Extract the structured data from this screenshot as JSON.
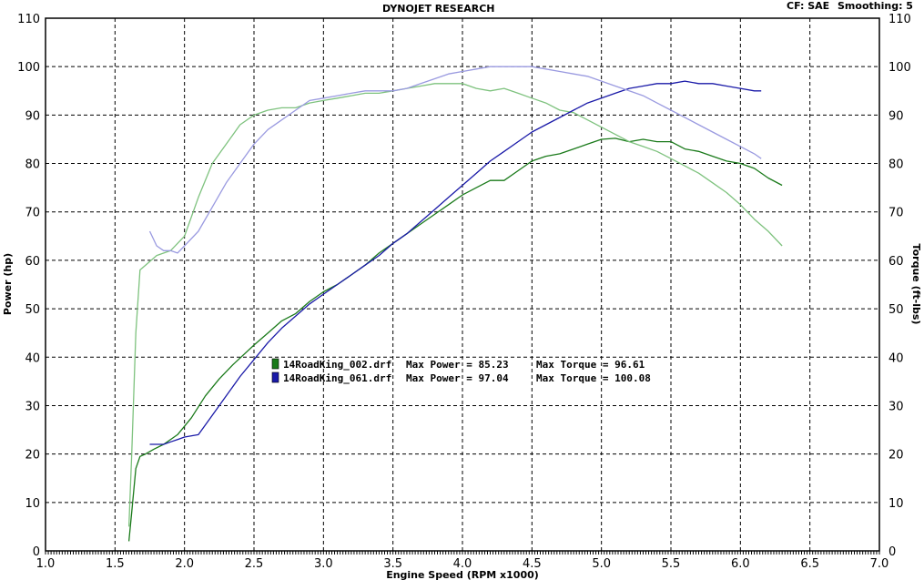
{
  "header": {
    "title": "DYNOJET RESEARCH",
    "cf_label": "CF: SAE",
    "smoothing_label": "Smoothing: 5"
  },
  "chart_data": {
    "type": "line",
    "title": "DYNOJET RESEARCH",
    "xlabel": "Engine Speed (RPM x1000)",
    "ylabel_left": "Power (hp)",
    "ylabel_right": "Torque (ft-lbs)",
    "xlim": [
      1.0,
      7.0
    ],
    "ylim": [
      0,
      110
    ],
    "x_ticks": [
      "1.0",
      "1.5",
      "2.0",
      "2.5",
      "3.0",
      "3.5",
      "4.0",
      "4.5",
      "5.0",
      "5.5",
      "6.0",
      "6.5",
      "7.0"
    ],
    "y_ticks": [
      "0",
      "10",
      "20",
      "30",
      "40",
      "50",
      "60",
      "70",
      "80",
      "90",
      "100",
      "110"
    ],
    "grid": true,
    "legend": [
      {
        "file": "14RoadKing_002.drf",
        "power_text": "Max Power = 85.23",
        "torque_text": "Max Torque = 96.61",
        "color": "#1a7a1a"
      },
      {
        "file": "14RoadKing_061.drf",
        "power_text": "Max Power = 97.04",
        "torque_text": "Max Torque = 100.08",
        "color": "#1a1aa8"
      }
    ],
    "series": [
      {
        "name": "14RoadKing_002.drf Power",
        "color": "#1a7a1a",
        "x": [
          1.6,
          1.62,
          1.65,
          1.68,
          1.72,
          1.78,
          1.85,
          1.95,
          2.05,
          2.15,
          2.25,
          2.35,
          2.5,
          2.6,
          2.7,
          2.8,
          2.9,
          3.0,
          3.1,
          3.2,
          3.3,
          3.4,
          3.5,
          3.6,
          3.7,
          3.8,
          3.9,
          4.0,
          4.1,
          4.2,
          4.3,
          4.4,
          4.5,
          4.6,
          4.7,
          4.8,
          4.9,
          5.0,
          5.1,
          5.2,
          5.3,
          5.4,
          5.5,
          5.6,
          5.7,
          5.8,
          5.9,
          6.0,
          6.1,
          6.2,
          6.3
        ],
        "values": [
          2,
          8,
          17,
          19.5,
          20,
          21,
          22,
          24,
          27.5,
          32,
          35.5,
          38.5,
          42.5,
          45,
          47.5,
          49,
          51.5,
          53.5,
          55,
          57,
          59,
          61.5,
          63.5,
          65.5,
          67.5,
          69.5,
          71.5,
          73.5,
          75,
          76.5,
          76.5,
          78.5,
          80.5,
          81.5,
          82,
          83,
          84,
          85,
          85.2,
          84.5,
          85,
          84.5,
          84.5,
          83,
          82.5,
          81.5,
          80.5,
          80,
          79,
          77,
          75.5
        ]
      },
      {
        "name": "14RoadKing_002.drf Torque",
        "color": "#7ec27e",
        "x": [
          1.6,
          1.62,
          1.65,
          1.68,
          1.72,
          1.8,
          1.9,
          2.0,
          2.1,
          2.2,
          2.3,
          2.4,
          2.5,
          2.6,
          2.7,
          2.8,
          2.9,
          3.0,
          3.1,
          3.2,
          3.3,
          3.4,
          3.5,
          3.6,
          3.7,
          3.8,
          3.9,
          4.0,
          4.1,
          4.2,
          4.3,
          4.4,
          4.5,
          4.6,
          4.7,
          4.8,
          4.9,
          5.0,
          5.1,
          5.2,
          5.3,
          5.4,
          5.5,
          5.6,
          5.7,
          5.8,
          5.9,
          6.0,
          6.1,
          6.2,
          6.3
        ],
        "values": [
          5,
          20,
          45,
          58,
          59,
          61,
          62,
          65,
          73,
          80,
          84,
          88,
          90,
          91,
          91.5,
          91.5,
          92.5,
          93,
          93.5,
          94,
          94.5,
          94.5,
          95,
          95.5,
          96,
          96.5,
          96.5,
          96.5,
          95.5,
          95,
          95.5,
          94.5,
          93.5,
          92.5,
          91,
          90.5,
          89,
          87.5,
          86,
          84.5,
          83.5,
          82.5,
          81,
          79.5,
          78,
          76,
          74,
          71.5,
          68.5,
          66,
          63
        ]
      },
      {
        "name": "14RoadKing_061.drf Power",
        "color": "#1a1aa8",
        "x": [
          1.75,
          1.8,
          1.85,
          1.9,
          1.95,
          2.0,
          2.1,
          2.2,
          2.3,
          2.4,
          2.5,
          2.6,
          2.7,
          2.8,
          2.9,
          3.0,
          3.1,
          3.2,
          3.3,
          3.4,
          3.5,
          3.6,
          3.7,
          3.8,
          3.9,
          4.0,
          4.1,
          4.2,
          4.3,
          4.4,
          4.5,
          4.6,
          4.7,
          4.8,
          4.9,
          5.0,
          5.1,
          5.2,
          5.3,
          5.4,
          5.5,
          5.6,
          5.7,
          5.8,
          5.9,
          6.0,
          6.1,
          6.15
        ],
        "values": [
          22,
          22,
          22,
          22.5,
          23,
          23.5,
          24,
          28,
          32,
          36,
          39.5,
          43,
          46,
          48.5,
          51,
          53,
          55,
          57,
          59,
          61,
          63.5,
          65.5,
          68,
          70.5,
          73,
          75.5,
          78,
          80.5,
          82.5,
          84.5,
          86.5,
          88,
          89.5,
          91,
          92.5,
          93.5,
          94.5,
          95.5,
          96,
          96.5,
          96.5,
          97,
          96.5,
          96.5,
          96,
          95.5,
          95,
          95
        ]
      },
      {
        "name": "14RoadKing_061.drf Torque",
        "color": "#9a9ae0",
        "x": [
          1.75,
          1.8,
          1.85,
          1.9,
          1.95,
          2.0,
          2.1,
          2.2,
          2.3,
          2.4,
          2.5,
          2.6,
          2.7,
          2.8,
          2.9,
          3.0,
          3.1,
          3.2,
          3.3,
          3.4,
          3.5,
          3.6,
          3.7,
          3.8,
          3.9,
          4.0,
          4.1,
          4.2,
          4.3,
          4.4,
          4.5,
          4.6,
          4.7,
          4.8,
          4.9,
          5.0,
          5.1,
          5.2,
          5.3,
          5.4,
          5.5,
          5.6,
          5.7,
          5.8,
          5.9,
          6.0,
          6.1,
          6.15
        ],
        "values": [
          66,
          63,
          62,
          62,
          61.5,
          63,
          66,
          71,
          76,
          80,
          84,
          87,
          89,
          91,
          93,
          93.5,
          94,
          94.5,
          95,
          95,
          95,
          95.5,
          96.5,
          97.5,
          98.5,
          99,
          99.5,
          100,
          100,
          100,
          100,
          99.5,
          99,
          98.5,
          98,
          97,
          96,
          95,
          94,
          92.5,
          91,
          89.5,
          88,
          86.5,
          85,
          83.5,
          82,
          81
        ]
      }
    ]
  }
}
